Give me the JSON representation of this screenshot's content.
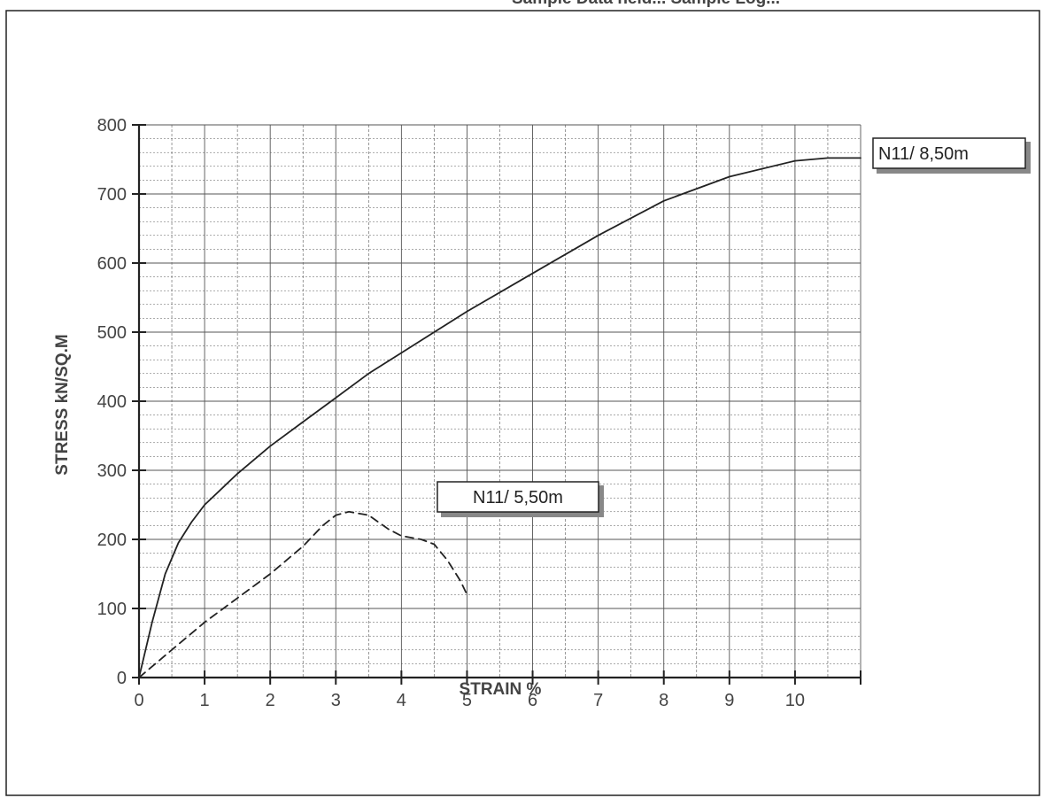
{
  "header": {
    "partial_title": "Sample Data held... Sample Log..."
  },
  "chart_data": {
    "type": "line",
    "title": "",
    "xlabel": "STRAIN %",
    "ylabel": "STRESS kN/SQ.M",
    "xlim": [
      0,
      11
    ],
    "ylim": [
      0,
      800
    ],
    "x_ticks": [
      "0",
      "1",
      "2",
      "3",
      "4",
      "5",
      "6",
      "7",
      "8",
      "9",
      "10"
    ],
    "y_ticks": [
      "0",
      "100",
      "200",
      "300",
      "400",
      "500",
      "600",
      "700",
      "800"
    ],
    "grid": true,
    "series": [
      {
        "name": "N11/ 8,50m",
        "style": "solid",
        "color": "#222222",
        "x": [
          0,
          0.2,
          0.4,
          0.6,
          0.8,
          1,
          1.5,
          2,
          2.5,
          3,
          3.5,
          4,
          4.5,
          5,
          6,
          7,
          8,
          9,
          10,
          10.5,
          11
        ],
        "y": [
          0,
          80,
          150,
          195,
          225,
          250,
          295,
          335,
          370,
          405,
          440,
          470,
          500,
          530,
          585,
          640,
          690,
          725,
          748,
          752,
          752
        ]
      },
      {
        "name": "N11/ 5,50m",
        "style": "dashed",
        "color": "#222222",
        "x": [
          0,
          0.5,
          1,
          1.5,
          2,
          2.5,
          2.8,
          3,
          3.2,
          3.5,
          3.8,
          4,
          4.3,
          4.5,
          4.7,
          4.9,
          5
        ],
        "y": [
          0,
          40,
          80,
          115,
          150,
          190,
          220,
          235,
          240,
          235,
          215,
          205,
          200,
          193,
          170,
          140,
          120
        ]
      }
    ],
    "labels": [
      {
        "text": "N11/ 8,50m",
        "series": 0
      },
      {
        "text": "N11/ 5,50m",
        "series": 1
      }
    ]
  }
}
